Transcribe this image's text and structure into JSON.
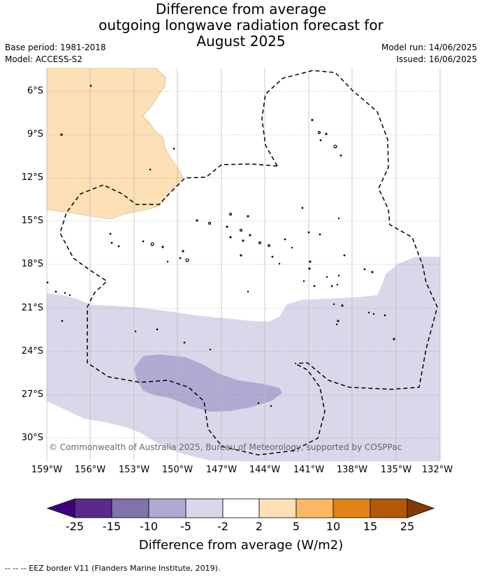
{
  "title_lines": [
    "Difference from average",
    "outgoing longwave radiation forecast for",
    "August 2025"
  ],
  "base_period": "Base period: 1981-2018",
  "model": "Model: ACCESS-S2",
  "model_run": "Model run: 14/06/2025",
  "issued": "Issued: 16/06/2025",
  "copyright": "© Commonwealth of Australia 2025, Bureau of Meteorology, supported by COSPPac",
  "eez_legend": "-- -- -- EEZ border V11 (Flanders Marine Institute, 2019).",
  "map": {
    "lat_ticks": [
      "6°S",
      "9°S",
      "12°S",
      "15°S",
      "18°S",
      "21°S",
      "24°S",
      "27°S",
      "30°S"
    ],
    "lon_ticks": [
      "159°W",
      "156°W",
      "153°W",
      "150°W",
      "147°W",
      "144°W",
      "141°W",
      "138°W",
      "135°W",
      "132°W"
    ],
    "lat_range": [
      "4.7°S",
      "31.9°S"
    ],
    "lon_range": [
      "159°W",
      "132°W"
    ]
  },
  "colorbar": {
    "title": "Difference from average (W/m2)",
    "tick_labels": [
      "-25",
      "-15",
      "-10",
      "-5",
      "-2",
      "2",
      "5",
      "10",
      "15",
      "25"
    ],
    "colors": [
      "#3f007d",
      "#5a2a8a",
      "#8072ad",
      "#b0a9d1",
      "#d9d8ea",
      "#ffffff",
      "#fde0b5",
      "#fdb863",
      "#e08214",
      "#b35806",
      "#7f3b08"
    ]
  }
}
